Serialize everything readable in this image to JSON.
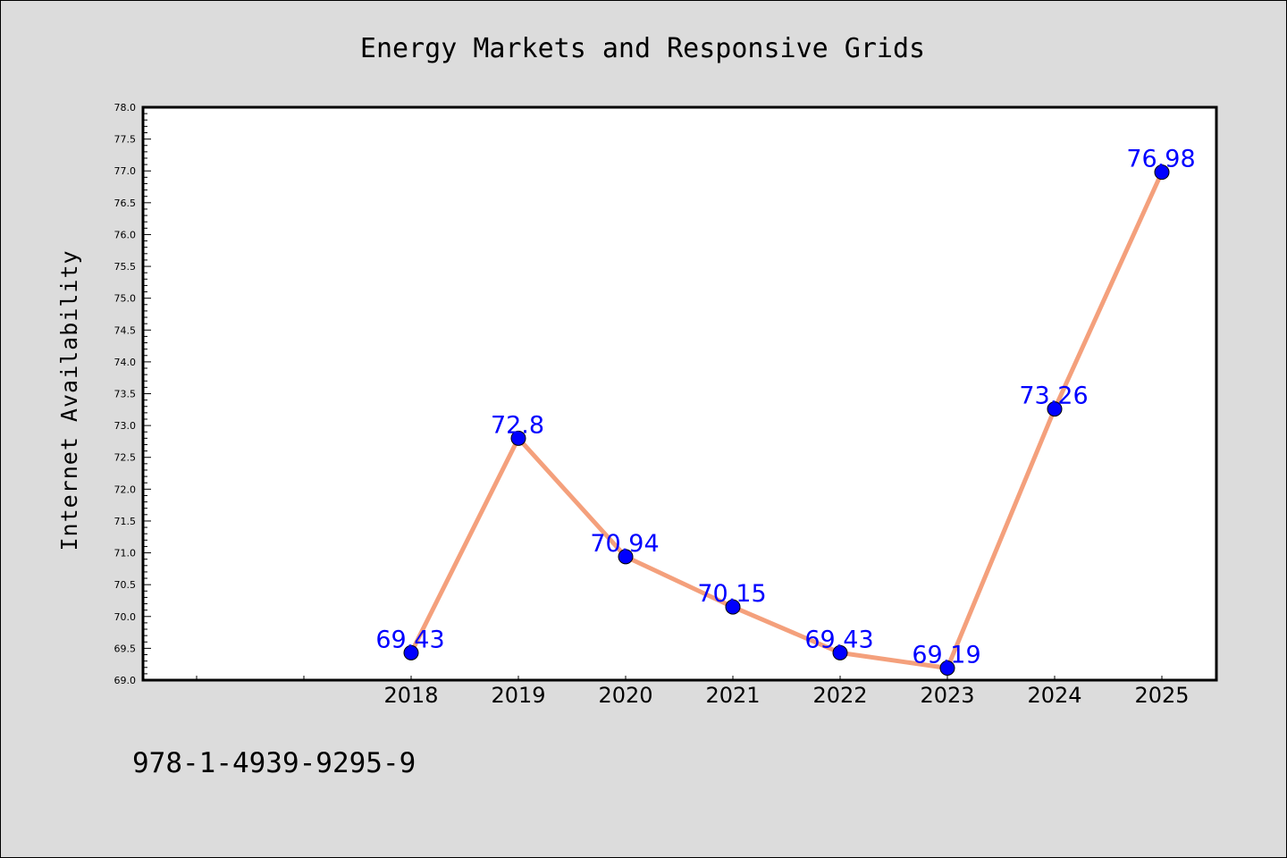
{
  "chart_data": {
    "type": "line",
    "title": "Energy Markets and Responsive Grids",
    "ylabel": "Internet Availability",
    "xlabel": "",
    "x": [
      "2018",
      "2019",
      "2020",
      "2021",
      "2022",
      "2023",
      "2024",
      "2025"
    ],
    "series": [
      {
        "values": [
          69.43,
          72.8,
          70.94,
          70.15,
          69.43,
          69.19,
          73.26,
          76.98
        ],
        "labels": [
          "69.43",
          "72.8",
          "70.94",
          "70.15",
          "69.43",
          "69.19",
          "73.26",
          "76.98"
        ]
      }
    ],
    "ylim": [
      69.0,
      78.0
    ],
    "yticks": [
      "69.0",
      "69.5",
      "70.0",
      "70.5",
      "71.0",
      "71.5",
      "72.0",
      "72.5",
      "73.0",
      "73.5",
      "74.0",
      "74.5",
      "75.0",
      "75.5",
      "76.0",
      "76.5",
      "77.0",
      "77.5",
      "78.0"
    ],
    "grid": false,
    "line_color": "#f4a07c",
    "marker_color": "#0000ff",
    "label_color": "#0000ff",
    "plot_background": "#ffffff",
    "figure_background": "#dcdcdc"
  },
  "footer": {
    "isbn": "978-1-4939-9295-9"
  }
}
